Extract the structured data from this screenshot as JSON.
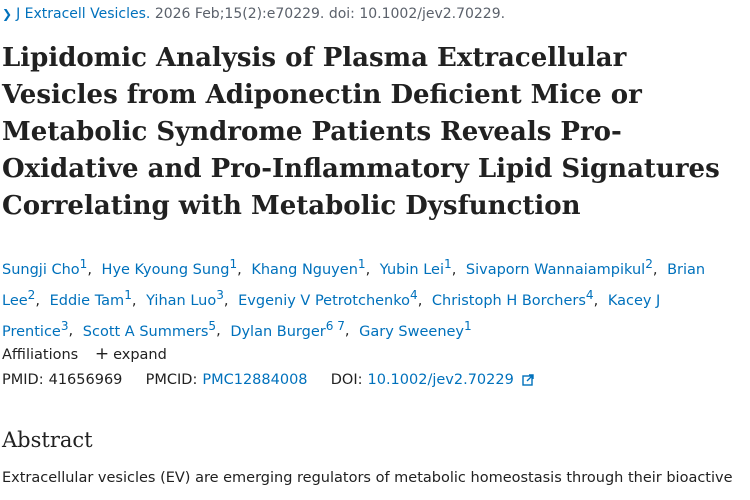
{
  "citation": {
    "journal": "J Extracell Vesicles.",
    "details": "2026 Feb;15(2):e70229. doi: 10.1002/jev2.70229."
  },
  "title": "Lipidomic Analysis of Plasma Extracellular Vesicles from Adiponectin Deficient Mice or Metabolic Syndrome Patients Reveals Pro-Oxidative and Pro-Inflammatory Lipid Signatures Correlating with Metabolic Dysfunction",
  "authors": [
    {
      "name": "Sungji Cho",
      "aff": "1"
    },
    {
      "name": "Hye Kyoung Sung",
      "aff": "1"
    },
    {
      "name": "Khang Nguyen",
      "aff": "1"
    },
    {
      "name": "Yubin Lei",
      "aff": "1"
    },
    {
      "name": "Sivaporn Wannaiampikul",
      "aff": "2"
    },
    {
      "name": "Brian Lee",
      "aff": "2"
    },
    {
      "name": "Eddie Tam",
      "aff": "1"
    },
    {
      "name": "Yihan Luo",
      "aff": "3"
    },
    {
      "name": "Evgeniy V Petrotchenko",
      "aff": "4"
    },
    {
      "name": "Christoph H Borchers",
      "aff": "4"
    },
    {
      "name": "Kacey J Prentice",
      "aff": "3"
    },
    {
      "name": "Scott A Summers",
      "aff": "5"
    },
    {
      "name": "Dylan Burger",
      "aff": "6 7"
    },
    {
      "name": "Gary Sweeney",
      "aff": "1"
    }
  ],
  "affiliations": {
    "label": "Affiliations",
    "expand_icon": "+",
    "expand_label": "expand"
  },
  "identifiers": {
    "pmid_label": "PMID:",
    "pmid": "41656969",
    "pmcid_label": "PMCID:",
    "pmcid": "PMC12884008",
    "doi_label": "DOI:",
    "doi": "10.1002/jev2.70229"
  },
  "abstract": {
    "heading": "Abstract",
    "text": "Extracellular vesicles (EV) are emerging regulators of metabolic homeostasis through their bioactive"
  },
  "colors": {
    "link": "#0071bc",
    "text": "#212121",
    "muted": "#5b616b"
  }
}
